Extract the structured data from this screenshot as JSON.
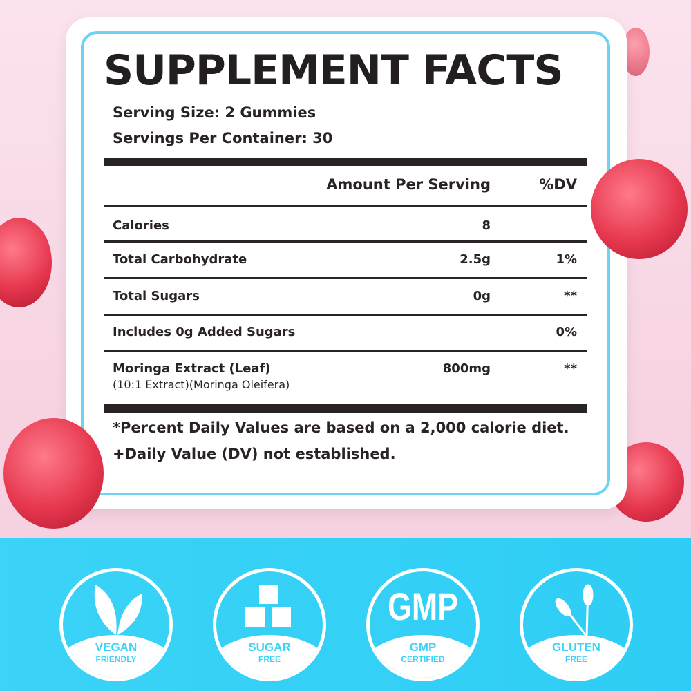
{
  "label": {
    "title": "SUPPLEMENT FACTS",
    "serving_size": "Serving Size: 2 Gummies",
    "servings_per_container": "Servings Per Container: 30",
    "header": {
      "amount": "Amount Per Serving",
      "dv": "%DV"
    },
    "rows": [
      {
        "name": "Calories",
        "amount": "8",
        "dv": ""
      },
      {
        "name": "Total Carbohydrate",
        "amount": "2.5g",
        "dv": "1%"
      },
      {
        "name": "Total Sugars",
        "amount": "0g",
        "dv": "**"
      },
      {
        "name": "Includes 0g Added Sugars",
        "amount": "",
        "dv": "0%"
      },
      {
        "name": "Moringa Extract (Leaf)",
        "sub": "(10:1 Extract)(Moringa Oleifera)",
        "amount": "800mg",
        "dv": "**"
      }
    ],
    "footnotes": [
      "*Percent Daily Values are based on a 2,000 calorie diet.",
      "+Daily Value (DV) not established."
    ]
  },
  "badges": [
    {
      "icon": "leaf-icon",
      "line1": "VEGAN",
      "line2": "FRIENDLY"
    },
    {
      "icon": "sugar-cubes-icon",
      "line1": "SUGAR",
      "line2": "FREE"
    },
    {
      "icon": "gmp-text-icon",
      "big": "GMP",
      "line1": "GMP",
      "line2": "CERTIFIED"
    },
    {
      "icon": "wheat-icon",
      "line1": "GLUTEN",
      "line2": "FREE"
    }
  ],
  "colors": {
    "background_pink": "#f7d3e2",
    "band_blue": "#33d0f5",
    "label_border": "#6dd3f2",
    "text": "#231f20"
  }
}
